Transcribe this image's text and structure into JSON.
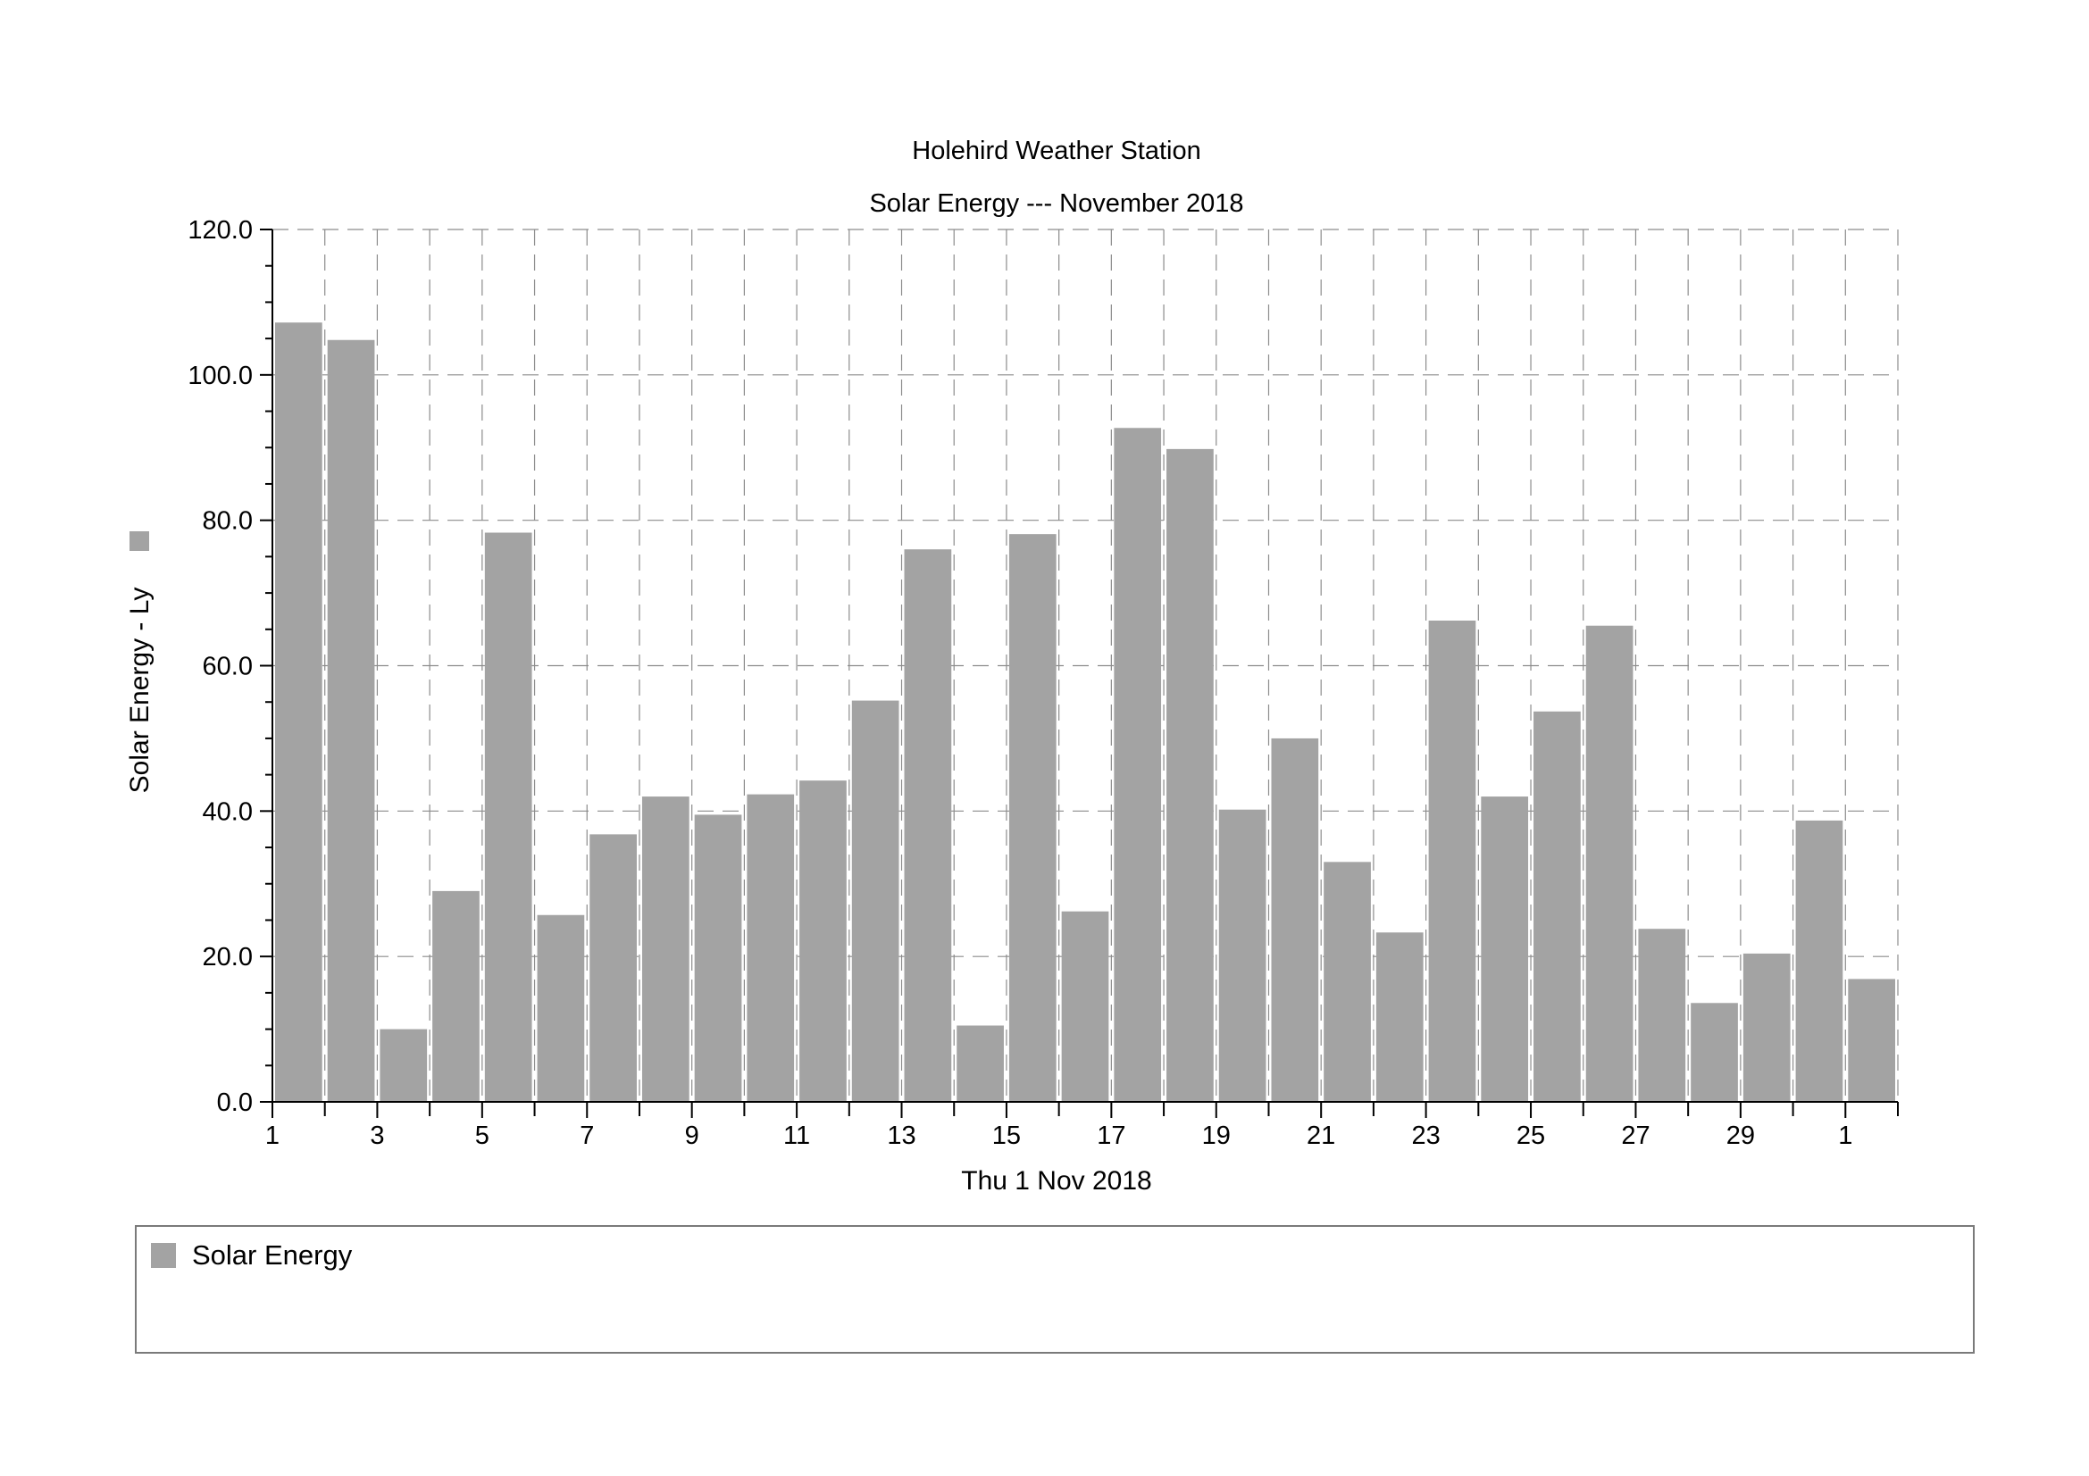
{
  "chart_data": {
    "type": "bar",
    "title": "Holehird Weather Station",
    "subtitle": "Solar Energy --- November 2018",
    "xlabel": "Thu 1 Nov 2018",
    "ylabel": "Solar Energy - Ly",
    "ylim": [
      0,
      120
    ],
    "yticks": [
      "0.0",
      "20.0",
      "40.0",
      "60.0",
      "80.0",
      "100.0",
      "120.0"
    ],
    "xticks": [
      "1",
      "3",
      "5",
      "7",
      "9",
      "11",
      "13",
      "15",
      "17",
      "19",
      "21",
      "23",
      "25",
      "27",
      "29",
      "1"
    ],
    "categories": [
      "1",
      "2",
      "3",
      "4",
      "5",
      "6",
      "7",
      "8",
      "9",
      "10",
      "11",
      "12",
      "13",
      "14",
      "15",
      "16",
      "17",
      "18",
      "19",
      "20",
      "21",
      "22",
      "23",
      "24",
      "25",
      "26",
      "27",
      "28",
      "29",
      "30",
      "31"
    ],
    "series": [
      {
        "name": "Solar Energy",
        "color": "#a3a3a3",
        "values": [
          107.2,
          104.8,
          10.0,
          29.0,
          78.3,
          25.7,
          36.8,
          42.0,
          39.5,
          42.3,
          44.2,
          55.2,
          76.0,
          10.5,
          78.1,
          26.2,
          92.7,
          89.8,
          40.2,
          50.0,
          33.0,
          23.3,
          66.2,
          42.0,
          53.7,
          65.5,
          23.8,
          13.6,
          20.4,
          38.7,
          16.9
        ]
      }
    ],
    "grid": true,
    "legend": "bottom"
  },
  "legend": {
    "label": "Solar Energy"
  }
}
